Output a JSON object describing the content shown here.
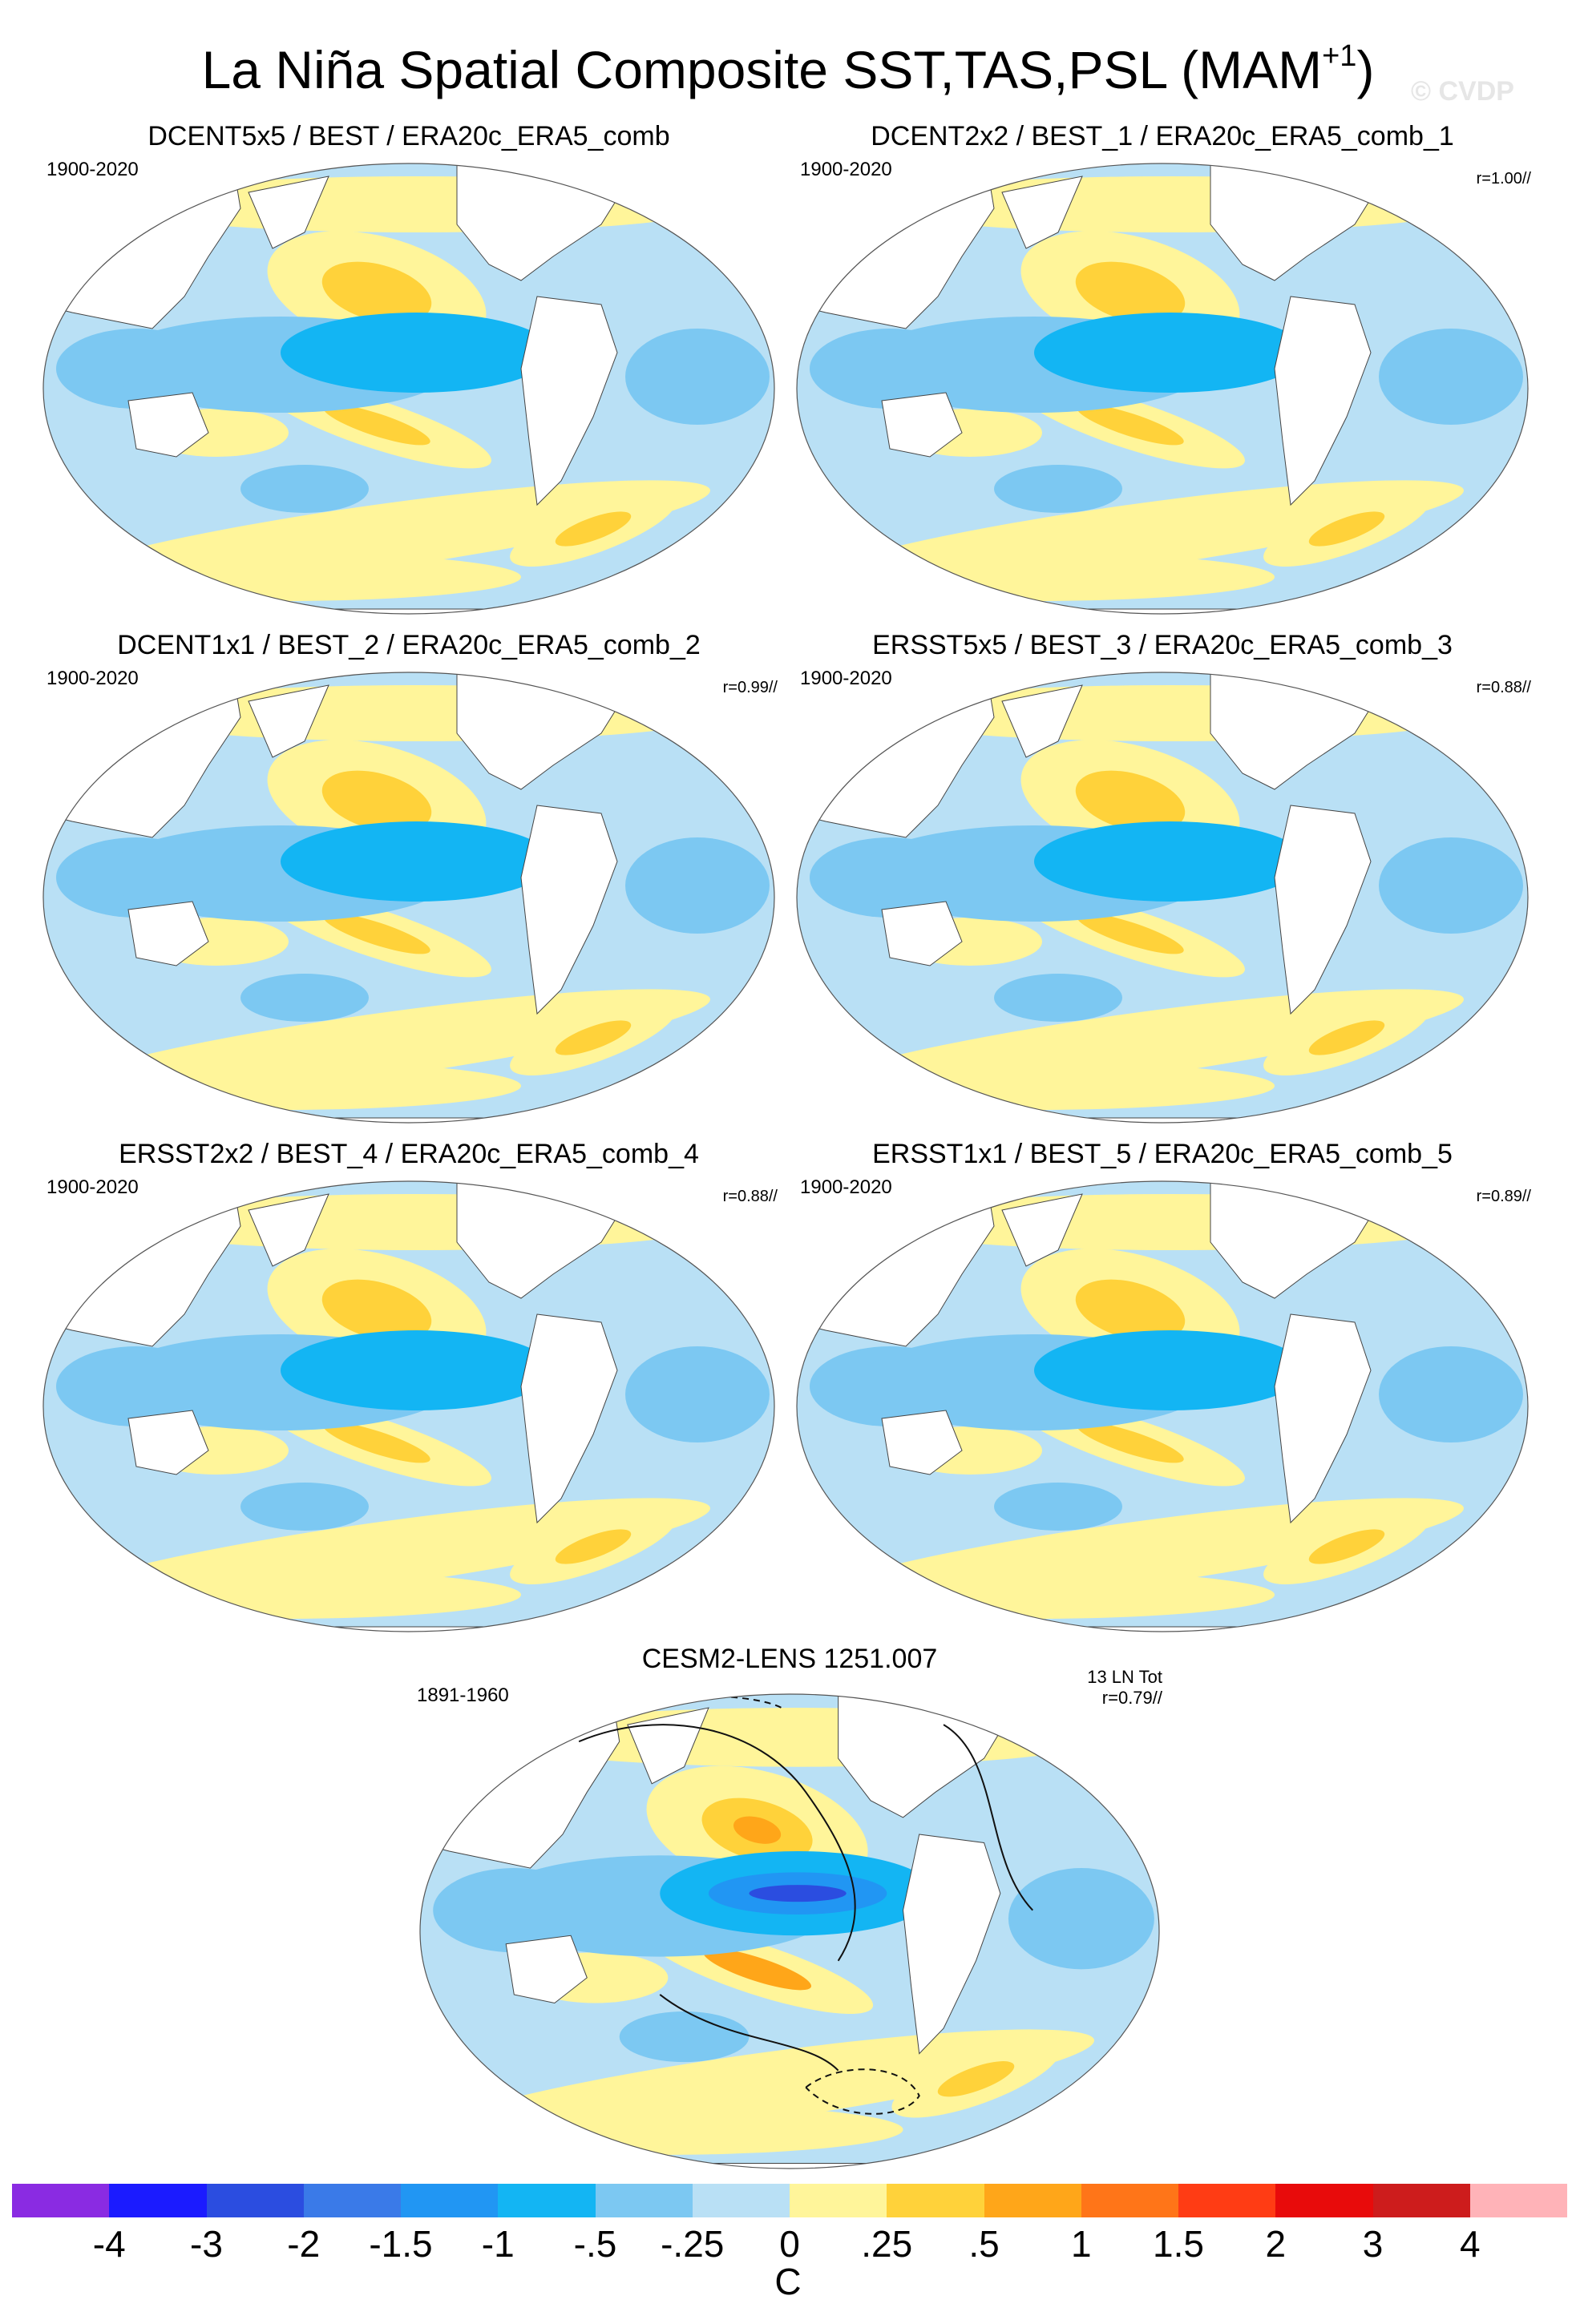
{
  "title": {
    "main": "La Niña Spatial Composite SST,TAS,PSL (MAM",
    "season_superscript": "+1",
    "close": ")"
  },
  "watermark": "© CVDP",
  "panels": [
    {
      "title": "DCENT5x5 / BEST / ERA20c_ERA5_comb",
      "years": "1900-2020",
      "corr": ""
    },
    {
      "title": "DCENT2x2 / BEST_1 / ERA20c_ERA5_comb_1",
      "years": "1900-2020",
      "corr": "r=1.00//"
    },
    {
      "title": "DCENT1x1 / BEST_2 / ERA20c_ERA5_comb_2",
      "years": "1900-2020",
      "corr": "r=0.99//"
    },
    {
      "title": "ERSST5x5 / BEST_3 / ERA20c_ERA5_comb_3",
      "years": "1900-2020",
      "corr": "r=0.88//"
    },
    {
      "title": "ERSST2x2 / BEST_4 / ERA20c_ERA5_comb_4",
      "years": "1900-2020",
      "corr": "r=0.88//"
    },
    {
      "title": "ERSST1x1 / BEST_5 / ERA20c_ERA5_comb_5",
      "years": "1900-2020",
      "corr": "r=0.89//"
    }
  ],
  "model_panel": {
    "title": "CESM2-LENS 1251.007",
    "years": "1891-1960",
    "events": "13 LN Tot",
    "corr": "r=0.79//"
  },
  "colorbar": {
    "unit": "C",
    "labels": [
      "-4",
      "-3",
      "-2",
      "-1.5",
      "-1",
      "-.5",
      "-.25",
      "0",
      ".25",
      ".5",
      "1",
      "1.5",
      "2",
      "3",
      "4"
    ],
    "colors": [
      "#8a2be2",
      "#1b1bff",
      "#2b4de0",
      "#3a7ae8",
      "#2196f3",
      "#13b5f3",
      "#7cc8f2",
      "#b9e0f5",
      "#fff59a",
      "#ffd23a",
      "#ffa619",
      "#ff7518",
      "#ff3c14",
      "#e80b0b",
      "#cd1c1c",
      "#ffb3b8"
    ]
  },
  "palette": {
    "land": "#ffffff",
    "outline": "#444444",
    "cold1": "#b9e0f5",
    "cold2": "#7cc8f2",
    "cold3": "#13b5f3",
    "cold4": "#2196f3",
    "cold5": "#2b4de0",
    "warm1": "#fff59a",
    "warm2": "#ffd23a",
    "warm3": "#ffa619"
  }
}
